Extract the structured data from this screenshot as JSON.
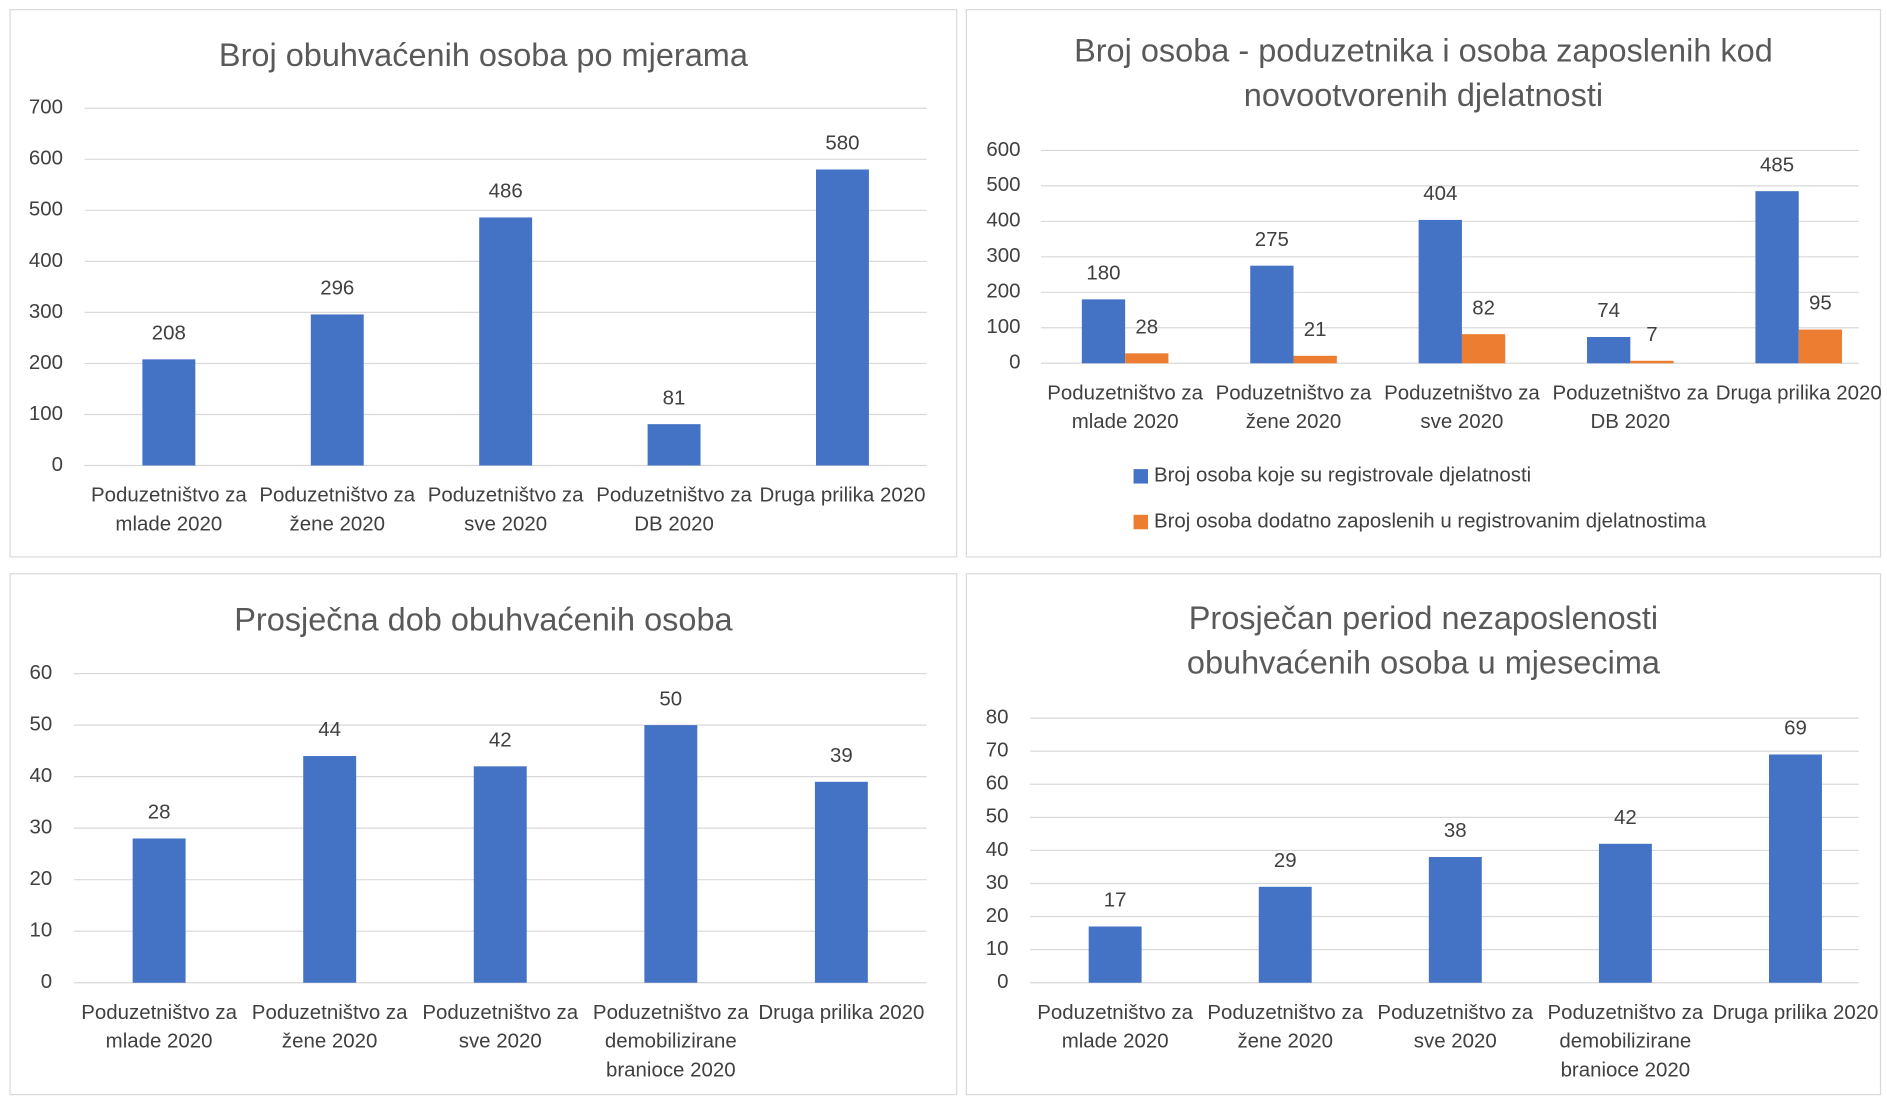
{
  "chart_data": [
    {
      "type": "bar",
      "title": "Broj obuhvaćenih osoba po mjerama",
      "categories": [
        "Poduzetništvo za mlade 2020",
        "Poduzetništvo za žene 2020",
        "Poduzetništvo za sve 2020",
        "Poduzetništvo za DB 2020",
        "Druga prilika 2020"
      ],
      "values": [
        208,
        296,
        486,
        81,
        580
      ],
      "color": "#4472c4",
      "ylim": [
        0,
        700
      ],
      "yticks": [
        0,
        100,
        200,
        300,
        400,
        500,
        600,
        700
      ],
      "grid": true
    },
    {
      "type": "bar",
      "title": "Broj osoba - poduzetnika i  osoba zaposlenih kod novootvorenih djelatnosti",
      "categories": [
        "Poduzetništvo za mlade 2020",
        "Poduzetništvo za žene 2020",
        "Poduzetništvo za sve 2020",
        "Poduzetništvo za DB 2020",
        "Druga prilika 2020"
      ],
      "series": [
        {
          "name": "Broj osoba koje su registrovale djelatnosti",
          "color": "#4472c4",
          "values": [
            180,
            275,
            404,
            74,
            485
          ]
        },
        {
          "name": "Broj osoba dodatno zaposlenih u registrovanim djelatnostima",
          "color": "#ed7d31",
          "values": [
            28,
            21,
            82,
            7,
            95
          ]
        }
      ],
      "ylim": [
        0,
        600
      ],
      "yticks": [
        0,
        100,
        200,
        300,
        400,
        500,
        600
      ],
      "grid": true,
      "legend": "bottom"
    },
    {
      "type": "bar",
      "title": "Prosječna dob obuhvaćenih osoba",
      "categories": [
        "Poduzetništvo za mlade 2020",
        "Poduzetništvo za žene 2020",
        "Poduzetništvo za sve 2020",
        "Poduzetništvo za demobilizirane branioce 2020",
        "Druga prilika 2020"
      ],
      "values": [
        28,
        44,
        42,
        50,
        39
      ],
      "color": "#4472c4",
      "ylim": [
        0,
        60
      ],
      "yticks": [
        0,
        10,
        20,
        30,
        40,
        50,
        60
      ],
      "grid": true
    },
    {
      "type": "bar",
      "title": "Prosječan period nezaposlenosti obuhvaćenih osoba u mjesecima",
      "categories": [
        "Poduzetništvo za mlade 2020",
        "Poduzetništvo za žene 2020",
        "Poduzetništvo za sve 2020",
        "Poduzetništvo za demobilizirane branioce 2020",
        "Druga prilika 2020"
      ],
      "values": [
        17,
        29,
        38,
        42,
        69
      ],
      "color": "#4472c4",
      "ylim": [
        0,
        80
      ],
      "yticks": [
        0,
        10,
        20,
        30,
        40,
        50,
        60,
        70,
        80
      ],
      "grid": true
    }
  ]
}
